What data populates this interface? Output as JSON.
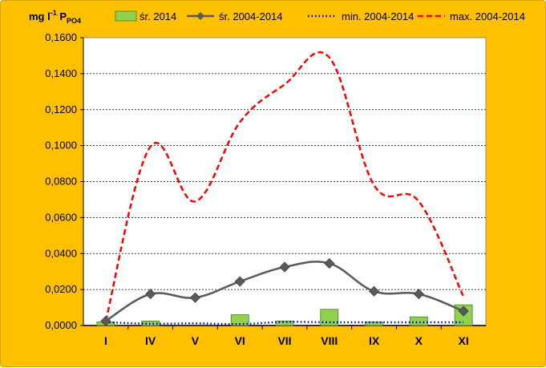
{
  "chart_data": {
    "type": "line",
    "ylabel_main": "mg l",
    "ylabel_sup": "-1",
    "ylabel_sub_main": " P",
    "ylabel_subscript": "PO4",
    "categories": [
      "I",
      "IV",
      "V",
      "VI",
      "VII",
      "VIII",
      "IX",
      "X",
      "XI"
    ],
    "ylim": [
      0,
      0.16
    ],
    "yticks": [
      "0,0000",
      "0,0200",
      "0,0400",
      "0,0600",
      "0,0800",
      "0,1000",
      "0,1200",
      "0,1400",
      "0,1600"
    ],
    "ytick_values": [
      0,
      0.02,
      0.04,
      0.06,
      0.08,
      0.1,
      0.12,
      0.14,
      0.16
    ],
    "grid": true,
    "legend_position": "top",
    "series": [
      {
        "name": "śr. 2014",
        "kind": "bar",
        "color": "#92D050",
        "values": [
          0.002,
          0.0025,
          0.0,
          0.006,
          0.0025,
          0.009,
          0.002,
          0.0048,
          0.0115
        ]
      },
      {
        "name": "śr. 2004-2014",
        "kind": "line-marker",
        "color": "#595959",
        "values": [
          0.0025,
          0.0175,
          0.0155,
          0.0245,
          0.0325,
          0.0345,
          0.019,
          0.0175,
          0.008
        ]
      },
      {
        "name": "min. 2004-2014",
        "kind": "dotted",
        "color": "#0000CC",
        "values": [
          0.0018,
          0.001,
          0.0012,
          0.0008,
          0.002,
          0.0018,
          0.0018,
          0.0018,
          0.0018
        ]
      },
      {
        "name": "max. 2004-2014",
        "kind": "dashed",
        "color": "#FF0000",
        "values": [
          0.0025,
          0.0995,
          0.069,
          0.113,
          0.134,
          0.149,
          0.078,
          0.069,
          0.016
        ]
      }
    ]
  }
}
